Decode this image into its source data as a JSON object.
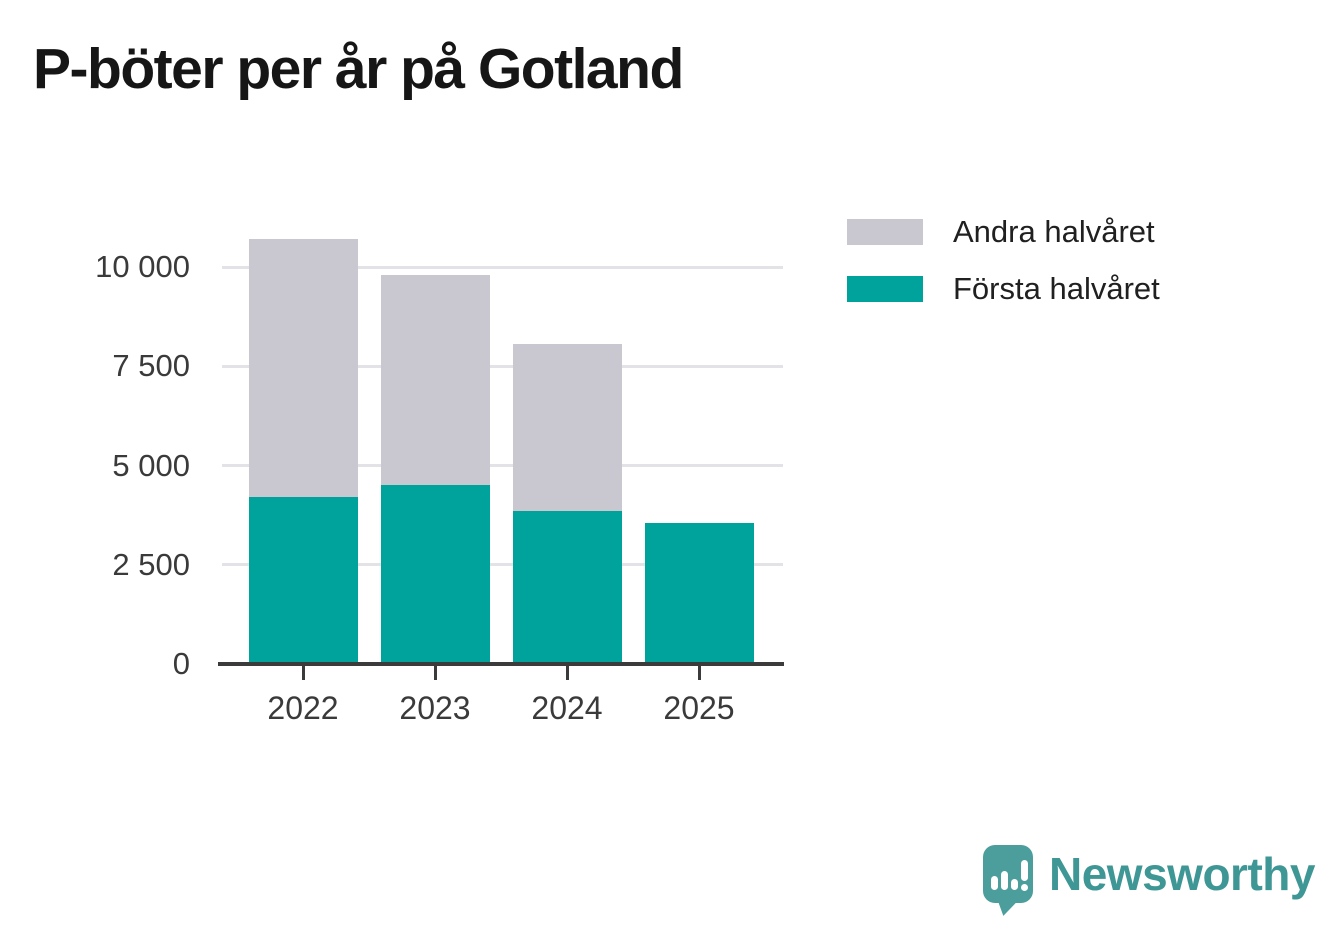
{
  "title": "P-böter per år på Gotland",
  "colors": {
    "first_half": "#00A39B",
    "second_half": "#C9C8D1",
    "gridline": "#E3E3E7",
    "axis": "#3B3B3B",
    "tick_label": "#3A3A3A",
    "legend_text": "#202020",
    "title_text": "#161616",
    "logo_bubble": "#4C9E9D",
    "logo_wordmark": "#3E9795"
  },
  "legend": {
    "items": [
      {
        "label": "Andra halvåret",
        "color_key": "second_half"
      },
      {
        "label": "Första halvåret",
        "color_key": "first_half"
      }
    ]
  },
  "y_axis": {
    "tick_labels": [
      "0",
      "2 500",
      "5 000",
      "7 500",
      "10 000"
    ],
    "tick_values": [
      0,
      2500,
      5000,
      7500,
      10000
    ]
  },
  "chart_data": {
    "type": "bar",
    "stacked": true,
    "title": "P-böter per år på Gotland",
    "categories": [
      "2022",
      "2023",
      "2024",
      "2025"
    ],
    "series": [
      {
        "name": "Första halvåret",
        "color_key": "first_half",
        "values": [
          4200,
          4500,
          3850,
          3550
        ]
      },
      {
        "name": "Andra halvåret",
        "color_key": "second_half",
        "values": [
          6500,
          5300,
          4200,
          0
        ]
      }
    ],
    "totals": [
      10700,
      9800,
      8050,
      3550
    ],
    "xlabel": "",
    "ylabel": "",
    "ylim": [
      0,
      10700
    ],
    "ytick_step": 2500,
    "grid": true,
    "legend_position": "right"
  },
  "branding": {
    "wordmark": "Newsworthy"
  }
}
